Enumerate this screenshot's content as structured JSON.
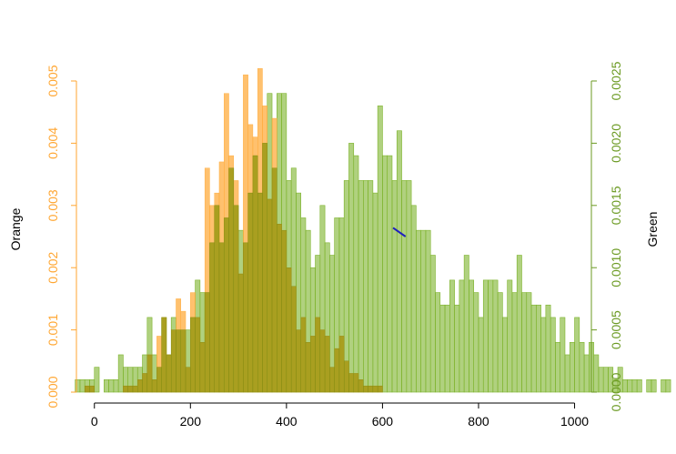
{
  "chart_data": {
    "type": "histogram",
    "title": "",
    "xlabel": "",
    "x_ticks": [
      0,
      200,
      400,
      600,
      800,
      1000
    ],
    "xlim": [
      -45,
      1035
    ],
    "bin_width": 10,
    "grid": false,
    "colors": {
      "orange": "#FFA631",
      "green": "#7CB22A",
      "overlap": "#9E9B1A",
      "line": "#1F1FBF",
      "axis": "#000000"
    },
    "left_axis": {
      "label": "Orange",
      "ylim": [
        0,
        0.005
      ],
      "ticks": [
        "0.000",
        "0.001",
        "0.002",
        "0.003",
        "0.004",
        "0.005"
      ],
      "tick_values": [
        0,
        0.001,
        0.002,
        0.003,
        0.004,
        0.005
      ]
    },
    "right_axis": {
      "label": "Green",
      "ylim": [
        0,
        0.0025
      ],
      "ticks": [
        "0.0000",
        "0.0005",
        "0.0010",
        "0.0015",
        "0.0020",
        "0.0025"
      ],
      "tick_values": [
        0,
        0.0005,
        0.001,
        0.0015,
        0.002,
        0.0025
      ]
    },
    "series": [
      {
        "name": "Orange",
        "axis": "left",
        "color": "#FFA631",
        "bin_start": -20,
        "values": [
          0.0001,
          0.0001,
          0.0,
          0.0,
          0.0,
          0.0,
          0.0,
          0.0,
          0.0001,
          0.0001,
          0.0001,
          0.0002,
          0.0003,
          0.0006,
          0.0002,
          0.0009,
          0.0012,
          0.0006,
          0.001,
          0.0015,
          0.0013,
          0.0004,
          0.0016,
          0.0012,
          0.0008,
          0.0036,
          0.003,
          0.0032,
          0.0037,
          0.0048,
          0.0038,
          0.0034,
          0.0019,
          0.0051,
          0.0043,
          0.0041,
          0.0052,
          0.0046,
          0.0031,
          0.0044,
          0.0027,
          0.0026,
          0.002,
          0.0017,
          0.001,
          0.0012,
          0.0008,
          0.0009,
          0.0012,
          0.001,
          0.0009,
          0.0004,
          0.0007,
          0.0009,
          0.0005,
          0.0003,
          0.0003,
          0.0002,
          0.0001,
          0.0001,
          0.0001,
          0.0001
        ]
      },
      {
        "name": "Green",
        "axis": "right",
        "color": "#7CB22A",
        "bin_start": -40,
        "values": [
          0.0001,
          0.0001,
          0.0001,
          0.0001,
          0.0002,
          0.0,
          0.0001,
          0.0001,
          0.0001,
          0.0003,
          0.0002,
          0.0002,
          0.0002,
          0.0002,
          0.0003,
          0.0006,
          0.0003,
          0.0002,
          0.0006,
          0.0003,
          0.0006,
          0.0005,
          0.0005,
          0.0005,
          0.0006,
          0.0009,
          0.0008,
          0.0008,
          0.0012,
          0.0015,
          0.0012,
          0.0014,
          0.0018,
          0.0015,
          0.0013,
          0.0012,
          0.0016,
          0.0019,
          0.0016,
          0.002,
          0.0024,
          0.0018,
          0.0024,
          0.0024,
          0.0017,
          0.0018,
          0.0016,
          0.0014,
          0.0013,
          0.001,
          0.0011,
          0.0015,
          0.0012,
          0.0011,
          0.0014,
          0.0014,
          0.0017,
          0.002,
          0.0019,
          0.0017,
          0.0017,
          0.0017,
          0.0016,
          0.0023,
          0.0019,
          0.0019,
          0.0017,
          0.0021,
          0.0017,
          0.0017,
          0.0015,
          0.0013,
          0.0013,
          0.0013,
          0.0011,
          0.0008,
          0.0007,
          0.0007,
          0.0009,
          0.0007,
          0.0009,
          0.0011,
          0.0009,
          0.0008,
          0.0006,
          0.0009,
          0.0009,
          0.0009,
          0.0008,
          0.0006,
          0.0009,
          0.0008,
          0.0011,
          0.0008,
          0.0008,
          0.0007,
          0.0007,
          0.0006,
          0.0007,
          0.0006,
          0.0004,
          0.0006,
          0.0003,
          0.0004,
          0.0006,
          0.0004,
          0.0003,
          0.0004,
          0.0003,
          0.0002,
          0.0002,
          0.0002,
          0.0001,
          0.0002,
          0.0001,
          0.0001,
          0.0001,
          0.0001,
          0.0,
          0.0001,
          0.0001,
          0.0,
          0.0001,
          0.0001,
          0.0,
          0.0,
          0.0001,
          0.0001,
          0.0,
          0.0001,
          0.0001,
          0.0001,
          0.0,
          0.0001,
          0.0001,
          0.0001,
          0.0001,
          0.0001
        ]
      }
    ],
    "annotations": [
      {
        "type": "line_segment",
        "color": "#1F1FBF",
        "x": [
          622,
          648
        ],
        "y_left": [
          0.00264,
          0.0025
        ]
      }
    ]
  }
}
